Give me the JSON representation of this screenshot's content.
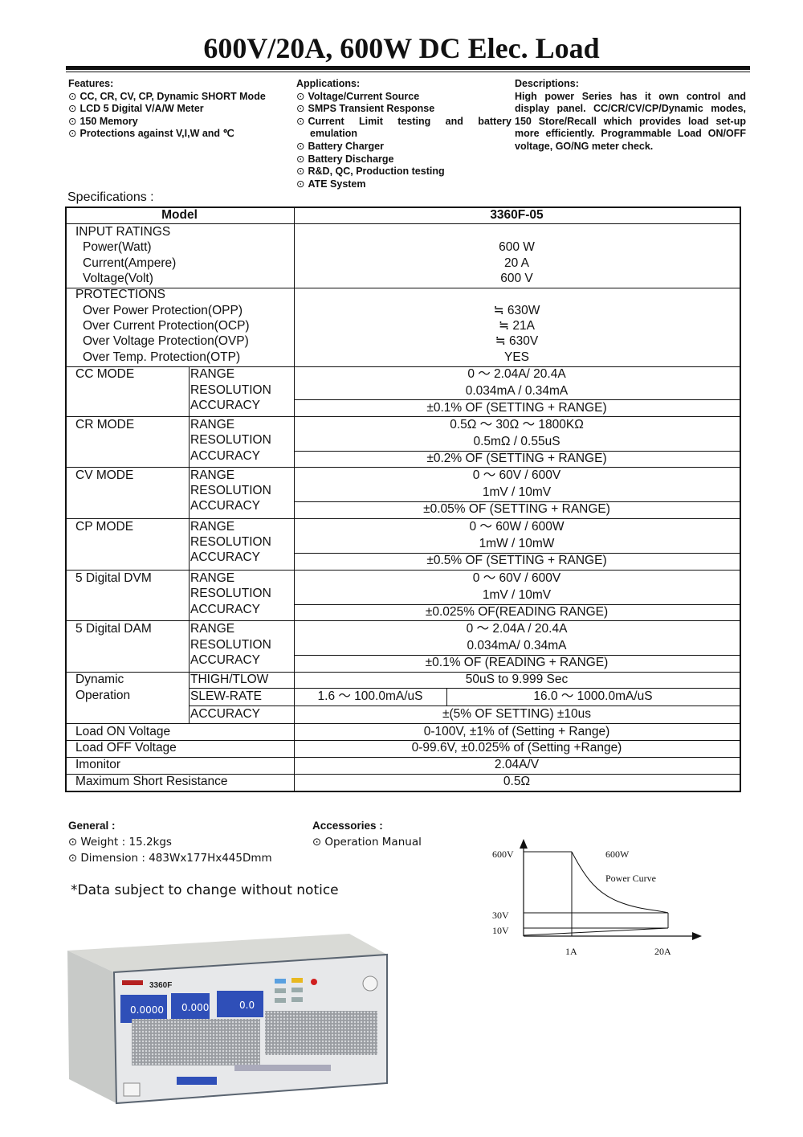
{
  "title": "600V/20A, 600W DC Elec. Load",
  "features": {
    "heading": "Features:",
    "items": [
      "CC, CR, CV, CP, Dynamic SHORT Mode",
      "LCD 5 Digital V/A/W Meter",
      "150 Memory",
      "Protections against V,I,W and ℃"
    ]
  },
  "applications": {
    "heading": "Applications:",
    "items": [
      "Voltage/Current Source",
      "SMPS Transient Response",
      "Current Limit testing and battery emulation",
      "Battery Charger",
      "Battery Discharge",
      "R&D, QC, Production testing",
      "ATE System"
    ]
  },
  "descriptions": {
    "heading": "Descriptions:",
    "text": "High power Series has it own control and display panel. CC/CR/CV/CP/Dynamic modes, 150 Store/Recall which provides load set-up more efficiently. Programmable Load ON/OFF voltage, GO/NG meter check."
  },
  "specifications_label": "Specifications :",
  "spec": {
    "header": {
      "label": "Model",
      "value": "3360F-05"
    },
    "input": {
      "title": "INPUT RATINGS",
      "rows": [
        {
          "label": "Power(Watt)",
          "value": "600 W"
        },
        {
          "label": "Current(Ampere)",
          "value": "20 A"
        },
        {
          "label": "Voltage(Volt)",
          "value": "600 V"
        }
      ]
    },
    "protections": {
      "title": "PROTECTIONS",
      "rows": [
        {
          "label": "Over Power Protection(OPP)",
          "value": "≒ 630W"
        },
        {
          "label": "Over Current Protection(OCP)",
          "value": "≒ 21A"
        },
        {
          "label": "Over Voltage Protection(OVP)",
          "value": "≒ 630V"
        },
        {
          "label": "Over Temp. Protection(OTP)",
          "value": "YES"
        }
      ]
    },
    "modes": [
      {
        "name": "CC MODE",
        "rows": [
          {
            "label": "RANGE",
            "value": "0 ～ 2.04A/ 20.4A"
          },
          {
            "label": "RESOLUTION",
            "value": "0.034mA / 0.34mA"
          },
          {
            "label": "ACCURACY",
            "value": "±0.1% OF (SETTING + RANGE)"
          }
        ]
      },
      {
        "name": "CR MODE",
        "rows": [
          {
            "label": "RANGE",
            "value": "0.5Ω ～ 30Ω ～ 1800KΩ"
          },
          {
            "label": "RESOLUTION",
            "value": "0.5mΩ / 0.55uS"
          },
          {
            "label": "ACCURACY",
            "value": "±0.2% OF (SETTING + RANGE)"
          }
        ]
      },
      {
        "name": "CV MODE",
        "rows": [
          {
            "label": "RANGE",
            "value": "0 ～ 60V / 600V"
          },
          {
            "label": "RESOLUTION",
            "value": "1mV / 10mV"
          },
          {
            "label": "ACCURACY",
            "value": "±0.05% OF (SETTING + RANGE)"
          }
        ]
      },
      {
        "name": "CP MODE",
        "rows": [
          {
            "label": "RANGE",
            "value": "0 ～ 60W / 600W"
          },
          {
            "label": "RESOLUTION",
            "value": "1mW / 10mW"
          },
          {
            "label": "ACCURACY",
            "value": "±0.5% OF (SETTING + RANGE)"
          }
        ]
      },
      {
        "name": "5 Digital DVM",
        "rows": [
          {
            "label": "RANGE",
            "value": "0 ～ 60V / 600V"
          },
          {
            "label": "RESOLUTION",
            "value": "1mV / 10mV"
          },
          {
            "label": "ACCURACY",
            "value": "±0.025% OF(READING RANGE)"
          }
        ]
      },
      {
        "name": "5 Digital DAM",
        "rows": [
          {
            "label": "RANGE",
            "value": "0 ～ 2.04A / 20.4A"
          },
          {
            "label": "RESOLUTION",
            "value": "0.034mA/ 0.34mA"
          },
          {
            "label": "ACCURACY",
            "value": "±0.1% OF (READING + RANGE)"
          }
        ]
      }
    ],
    "dynamic": {
      "name": [
        "Dynamic",
        "Operation"
      ],
      "thigh": {
        "label": "THIGH/TLOW",
        "value": "50uS to 9.999 Sec"
      },
      "slew": {
        "label": "SLEW-RATE",
        "values": [
          "1.6 ～ 100.0mA/uS",
          "16.0 ～ 1000.0mA/uS"
        ]
      },
      "accuracy": {
        "label": "ACCURACY",
        "value": "±(5% OF SETTING) ±10us"
      }
    },
    "misc": [
      {
        "label": "Load ON Voltage",
        "value": "0-100V, ±1% of (Setting + Range)"
      },
      {
        "label": "Load OFF Voltage",
        "value": "0-99.6V, ±0.025% of (Setting +Range)"
      },
      {
        "label": "Imonitor",
        "value": "2.04A/V"
      },
      {
        "label": "Maximum Short Resistance",
        "value": "0.5Ω"
      }
    ]
  },
  "general": {
    "heading": "General :",
    "items": [
      "Weight : 15.2kgs",
      "Dimension : 483Wx177Hx445Dmm"
    ]
  },
  "accessories": {
    "heading": "Accessories :",
    "items": [
      "Operation Manual"
    ]
  },
  "notice": "*Data subject to change without notice",
  "power_curve": {
    "v_labels": [
      "600V",
      "30V",
      "10V"
    ],
    "i_labels": [
      "1A",
      "20A"
    ],
    "power_label": "600W",
    "curve_label": "Power Curve"
  },
  "product_photo": {
    "model_text": "3360F",
    "displays": [
      "0.0000",
      "0.000",
      "0.0"
    ]
  },
  "colors": {
    "text": "#111111",
    "lcd_blue": "#2f4fb8",
    "panel_gray": "#e4e6e8"
  }
}
